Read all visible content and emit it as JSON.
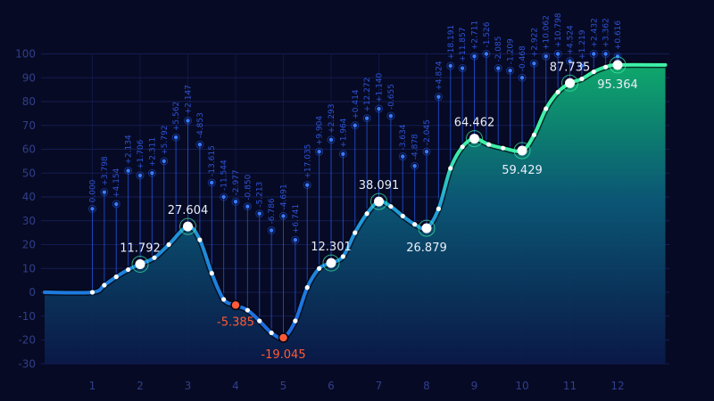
{
  "chart_data": {
    "type": "area",
    "title": "",
    "xlabel": "",
    "ylabel": "",
    "ylim": [
      -30,
      100
    ],
    "yticks": [
      -30,
      -20,
      -10,
      0,
      10,
      20,
      30,
      40,
      50,
      60,
      70,
      80,
      90,
      100
    ],
    "xticks": [
      1,
      2,
      3,
      4,
      5,
      6,
      7,
      8,
      9,
      10,
      11,
      12
    ],
    "grid": true,
    "legend": "none",
    "colors": {
      "background": "#070a24",
      "line_positive": "#3ef0a8",
      "line_negative": "#1e8fe0",
      "area_top": "#0fb070",
      "area_bottom": "#0a1a4a",
      "negative_marker": "#ff5a36",
      "label": "#e9eef8",
      "spike": "#2d54d6"
    },
    "series": [
      {
        "values": [
          {
            "x": 0.0,
            "y": 0
          },
          {
            "x": 1.0,
            "y": 0
          },
          {
            "x": 1.25,
            "y": 3
          },
          {
            "x": 1.5,
            "y": 6.5
          },
          {
            "x": 1.75,
            "y": 9.5
          },
          {
            "x": 2.0,
            "y": 11.792
          },
          {
            "x": 2.3,
            "y": 14.5
          },
          {
            "x": 2.6,
            "y": 20
          },
          {
            "x": 3.0,
            "y": 27.604
          },
          {
            "x": 3.25,
            "y": 22
          },
          {
            "x": 3.5,
            "y": 8
          },
          {
            "x": 3.75,
            "y": -3
          },
          {
            "x": 4.0,
            "y": -5.385
          },
          {
            "x": 4.25,
            "y": -7.5
          },
          {
            "x": 4.5,
            "y": -12
          },
          {
            "x": 4.75,
            "y": -17
          },
          {
            "x": 5.0,
            "y": -19.045
          },
          {
            "x": 5.25,
            "y": -12
          },
          {
            "x": 5.5,
            "y": 2
          },
          {
            "x": 5.75,
            "y": 10
          },
          {
            "x": 6.0,
            "y": 12.301
          },
          {
            "x": 6.25,
            "y": 15
          },
          {
            "x": 6.5,
            "y": 25
          },
          {
            "x": 6.75,
            "y": 33
          },
          {
            "x": 7.0,
            "y": 38.091
          },
          {
            "x": 7.25,
            "y": 36
          },
          {
            "x": 7.5,
            "y": 32
          },
          {
            "x": 7.75,
            "y": 28.5
          },
          {
            "x": 8.0,
            "y": 26.879
          },
          {
            "x": 8.25,
            "y": 35
          },
          {
            "x": 8.5,
            "y": 52
          },
          {
            "x": 8.75,
            "y": 61
          },
          {
            "x": 9.0,
            "y": 64.462
          },
          {
            "x": 9.3,
            "y": 62
          },
          {
            "x": 9.6,
            "y": 60.5
          },
          {
            "x": 10.0,
            "y": 59.429
          },
          {
            "x": 10.25,
            "y": 66
          },
          {
            "x": 10.5,
            "y": 77
          },
          {
            "x": 10.75,
            "y": 84
          },
          {
            "x": 11.0,
            "y": 87.735
          },
          {
            "x": 11.25,
            "y": 89.5
          },
          {
            "x": 11.5,
            "y": 92.5
          },
          {
            "x": 11.75,
            "y": 94.5
          },
          {
            "x": 12.0,
            "y": 95.364
          },
          {
            "x": 13.0,
            "y": 95.364
          }
        ]
      }
    ],
    "annotations": [
      {
        "x": 2,
        "y": 11.792,
        "text": "11.792",
        "kind": "positive"
      },
      {
        "x": 3,
        "y": 27.604,
        "text": "27.604",
        "kind": "positive"
      },
      {
        "x": 4,
        "y": -5.385,
        "text": "-5.385",
        "kind": "negative"
      },
      {
        "x": 5,
        "y": -19.045,
        "text": "-19.045",
        "kind": "negative"
      },
      {
        "x": 6,
        "y": 12.301,
        "text": "12.301",
        "kind": "positive"
      },
      {
        "x": 7,
        "y": 38.091,
        "text": "38.091",
        "kind": "positive"
      },
      {
        "x": 8,
        "y": 26.879,
        "text": "26.879",
        "kind": "positive"
      },
      {
        "x": 9,
        "y": 64.462,
        "text": "64.462",
        "kind": "positive"
      },
      {
        "x": 10,
        "y": 59.429,
        "text": "59.429",
        "kind": "positive"
      },
      {
        "x": 11,
        "y": 87.735,
        "text": "87.735",
        "kind": "positive"
      },
      {
        "x": 12,
        "y": 95.364,
        "text": "95.364",
        "kind": "positive"
      }
    ],
    "spikes": [
      {
        "x": 1.0,
        "y": 35,
        "label": "0.000"
      },
      {
        "x": 1.25,
        "y": 42,
        "label": "+3.798"
      },
      {
        "x": 1.5,
        "y": 37,
        "label": "+4.154"
      },
      {
        "x": 1.75,
        "y": 51,
        "label": "+2.134"
      },
      {
        "x": 2.0,
        "y": 49,
        "label": "+1.706"
      },
      {
        "x": 2.25,
        "y": 50,
        "label": "+2.311"
      },
      {
        "x": 2.5,
        "y": 55,
        "label": "+5.792"
      },
      {
        "x": 2.75,
        "y": 65,
        "label": "+5.562"
      },
      {
        "x": 3.0,
        "y": 72,
        "label": "+2.147"
      },
      {
        "x": 3.25,
        "y": 62,
        "label": "-4.853"
      },
      {
        "x": 3.5,
        "y": 46,
        "label": "-13.615"
      },
      {
        "x": 3.75,
        "y": 40,
        "label": "-11.544"
      },
      {
        "x": 4.0,
        "y": 38,
        "label": "-2.977"
      },
      {
        "x": 4.25,
        "y": 36,
        "label": "-0.850"
      },
      {
        "x": 4.5,
        "y": 33,
        "label": "-5.213"
      },
      {
        "x": 4.75,
        "y": 26,
        "label": "-6.786"
      },
      {
        "x": 5.0,
        "y": 32,
        "label": "-4.691"
      },
      {
        "x": 5.25,
        "y": 22,
        "label": "+6.741"
      },
      {
        "x": 5.5,
        "y": 45,
        "label": "+17.035"
      },
      {
        "x": 5.75,
        "y": 59,
        "label": "+9.904"
      },
      {
        "x": 6.0,
        "y": 64,
        "label": "+2.293"
      },
      {
        "x": 6.25,
        "y": 58,
        "label": "+1.964"
      },
      {
        "x": 6.5,
        "y": 70,
        "label": "+0.414"
      },
      {
        "x": 6.75,
        "y": 73,
        "label": "+12.272"
      },
      {
        "x": 7.0,
        "y": 77,
        "label": "+1.140"
      },
      {
        "x": 7.25,
        "y": 74,
        "label": "-0.655"
      },
      {
        "x": 7.5,
        "y": 57,
        "label": "-3.634"
      },
      {
        "x": 7.75,
        "y": 53,
        "label": "-4.878"
      },
      {
        "x": 8.0,
        "y": 59,
        "label": "-2.045"
      },
      {
        "x": 8.25,
        "y": 82,
        "label": "+4.824"
      },
      {
        "x": 8.5,
        "y": 95,
        "label": "+18.191"
      },
      {
        "x": 8.75,
        "y": 94,
        "label": "+11.857"
      },
      {
        "x": 9.0,
        "y": 99,
        "label": "+2.711"
      },
      {
        "x": 9.25,
        "y": 100,
        "label": "-1.526"
      },
      {
        "x": 9.5,
        "y": 94,
        "label": "-2.085"
      },
      {
        "x": 9.75,
        "y": 93,
        "label": "-1.209"
      },
      {
        "x": 10.0,
        "y": 90,
        "label": "-0.468"
      },
      {
        "x": 10.25,
        "y": 96,
        "label": "+2.922"
      },
      {
        "x": 10.5,
        "y": 99,
        "label": "+10.062"
      },
      {
        "x": 10.75,
        "y": 100,
        "label": "+10.798"
      },
      {
        "x": 11.0,
        "y": 97,
        "label": "+4.524"
      },
      {
        "x": 11.25,
        "y": 95,
        "label": "+1.219"
      },
      {
        "x": 11.5,
        "y": 100,
        "label": "+2.432"
      },
      {
        "x": 11.75,
        "y": 100,
        "label": "+3.362"
      },
      {
        "x": 12.0,
        "y": 99,
        "label": "+0.616"
      }
    ]
  }
}
